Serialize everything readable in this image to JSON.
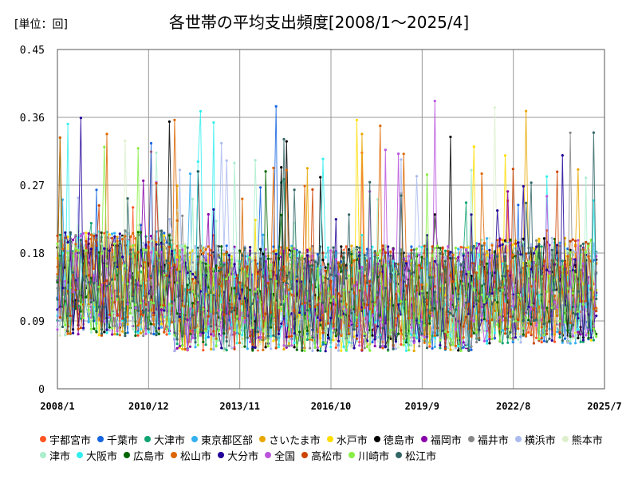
{
  "chart_data": {
    "type": "line",
    "title": "各世帯の平均支出頻度[2008/1～2025/4]",
    "unit_label": "[単位：回]",
    "ylim": [
      0,
      0.45
    ],
    "yticks": [
      "0",
      "0.09",
      "0.18",
      "0.27",
      "0.36",
      "0.45"
    ],
    "xticks": [
      "2008/1",
      "2010/12",
      "2013/11",
      "2016/10",
      "2019/9",
      "2022/8",
      "2025/7"
    ],
    "grid": true,
    "legend_position": "bottom",
    "series": [
      {
        "name": "宇都宮市",
        "color": "#ff5522"
      },
      {
        "name": "千葉市",
        "color": "#1565e0"
      },
      {
        "name": "大津市",
        "color": "#0fa372"
      },
      {
        "name": "東京都区部",
        "color": "#34b0f0"
      },
      {
        "name": "さいたま市",
        "color": "#e8a800"
      },
      {
        "name": "水戸市",
        "color": "#ffdd00"
      },
      {
        "name": "徳島市",
        "color": "#000000"
      },
      {
        "name": "福岡市",
        "color": "#8800aa"
      },
      {
        "name": "福井市",
        "color": "#888888"
      },
      {
        "name": "横浜市",
        "color": "#aabbee"
      },
      {
        "name": "熊本市",
        "color": "#ddf0cc"
      },
      {
        "name": "津市",
        "color": "#aaeecc"
      },
      {
        "name": "大阪市",
        "color": "#33eeee"
      },
      {
        "name": "広島市",
        "color": "#006600"
      },
      {
        "name": "松山市",
        "color": "#dd6600"
      },
      {
        "name": "大分市",
        "color": "#220099"
      },
      {
        "name": "全国",
        "color": "#bb55dd"
      },
      {
        "name": "高松市",
        "color": "#cc4400"
      },
      {
        "name": "川崎市",
        "color": "#88ee44"
      },
      {
        "name": "松江市",
        "color": "#336666"
      }
    ]
  }
}
